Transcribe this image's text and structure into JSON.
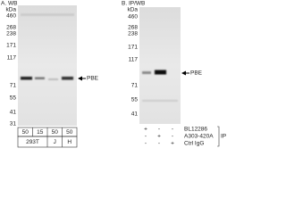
{
  "panel_a": {
    "title": "A. WB",
    "unit": "kDa",
    "markers": [
      "460",
      "268",
      "238",
      "171",
      "117",
      "71",
      "55",
      "41",
      "31"
    ],
    "band_label": "PBE",
    "lanes": [
      "50",
      "15",
      "50",
      "50"
    ],
    "groups": [
      "293T",
      "J",
      "H"
    ]
  },
  "panel_b": {
    "title": "B. IP/WB",
    "unit": "kDa",
    "markers": [
      "460",
      "268",
      "238",
      "171",
      "117",
      "71",
      "55",
      "41"
    ],
    "band_label": "PBE",
    "rows": [
      {
        "label": "BL12286",
        "signs": [
          "+",
          "-",
          "-"
        ]
      },
      {
        "label": "A303-420A",
        "signs": [
          "-",
          "+",
          "-"
        ]
      },
      {
        "label": "Ctrl IgG",
        "signs": [
          "-",
          "-",
          "+"
        ]
      }
    ],
    "ip_label": "IP"
  }
}
